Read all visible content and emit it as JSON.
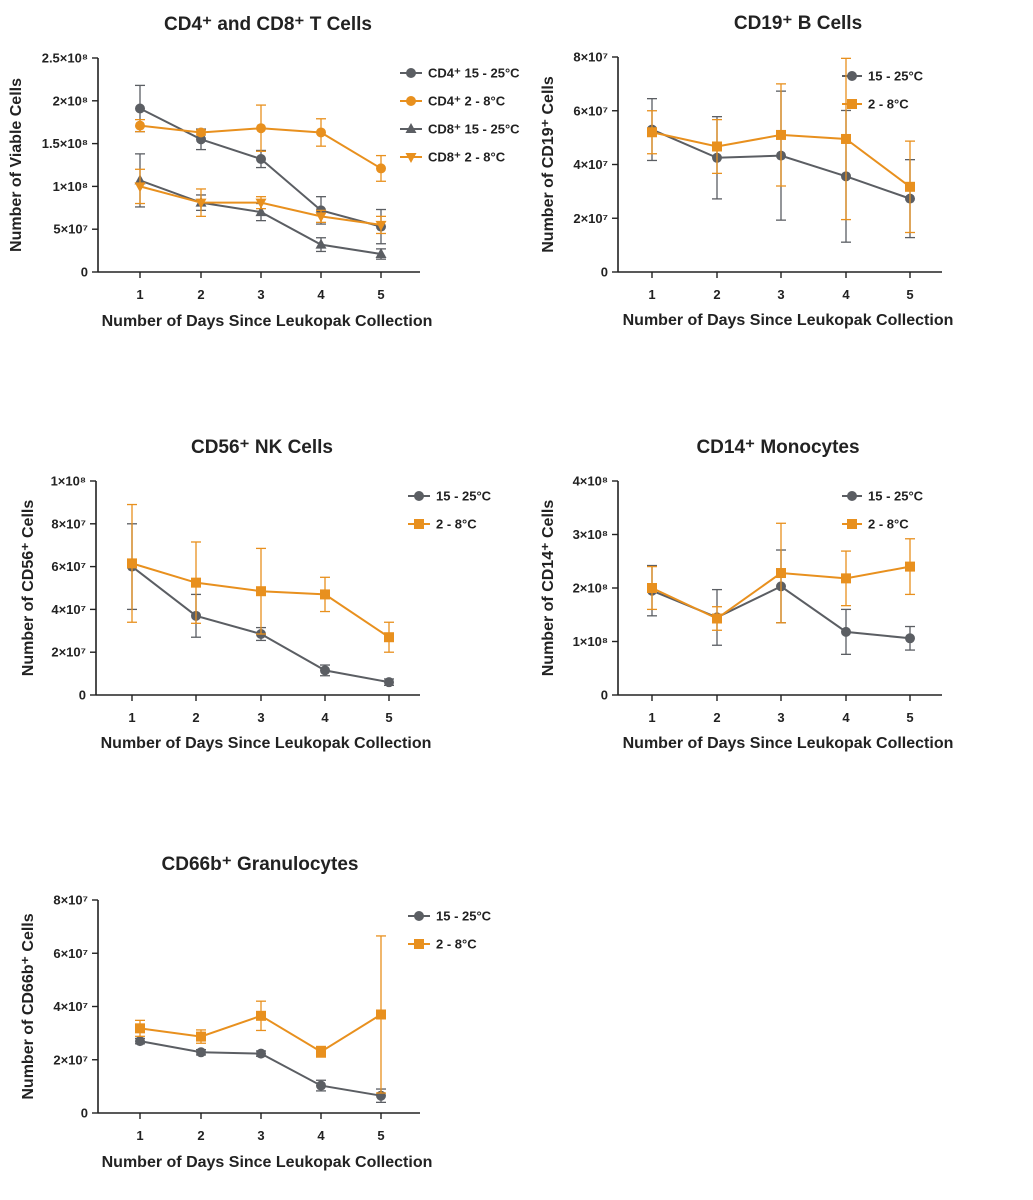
{
  "colors": {
    "warm": "#5b5e63",
    "cold": "#e8901e",
    "axis": "#222222"
  },
  "chart_data": [
    {
      "type": "line",
      "title": "CD4⁺ and CD8⁺ T Cells",
      "xlabel": "Number of Days Since Leukopak Collection",
      "ylabel": "Number of Viable Cells",
      "x": [
        1,
        2,
        3,
        4,
        5
      ],
      "ylim": [
        0,
        250000000
      ],
      "yticks": [
        0,
        50000000,
        100000000,
        150000000,
        200000000,
        250000000
      ],
      "yticklabels": [
        "0",
        "5×10⁷",
        "1×10⁸",
        "1.5×10⁸",
        "2×10⁸",
        "2.5×10⁸"
      ],
      "legend_position": "top-right",
      "series": [
        {
          "name": "CD4⁺ 15 - 25°C",
          "color": "#5b5e63",
          "marker": "circle",
          "values": [
            191000000,
            155000000,
            132000000,
            72000000,
            53000000
          ],
          "errors": [
            27000000,
            12000000,
            10000000,
            16000000,
            20000000
          ]
        },
        {
          "name": "CD4⁺ 2 - 8°C",
          "color": "#e8901e",
          "marker": "circle",
          "values": [
            171000000,
            163000000,
            168000000,
            163000000,
            121000000
          ],
          "errors": [
            7000000,
            3000000,
            27000000,
            16000000,
            15000000
          ]
        },
        {
          "name": "CD8⁺ 15 - 25°C",
          "color": "#5b5e63",
          "marker": "triangle-up",
          "values": [
            107000000,
            81000000,
            70000000,
            32000000,
            21000000
          ],
          "errors": [
            31000000,
            9000000,
            10000000,
            8000000,
            6000000
          ]
        },
        {
          "name": "CD8⁺ 2 - 8°C",
          "color": "#e8901e",
          "marker": "triangle-down",
          "values": [
            100000000,
            81000000,
            81000000,
            65000000,
            55000000
          ],
          "errors": [
            20000000,
            16000000,
            7000000,
            7000000,
            10000000
          ]
        }
      ]
    },
    {
      "type": "line",
      "title": "CD19⁺ B Cells",
      "xlabel": "Number of Days Since Leukopak Collection",
      "ylabel": "Number of CD19⁺ Cells",
      "x": [
        1,
        2,
        3,
        4,
        5
      ],
      "ylim": [
        0,
        80000000
      ],
      "yticks": [
        0,
        20000000,
        40000000,
        60000000,
        80000000
      ],
      "yticklabels": [
        "0",
        "2×10⁷",
        "4×10⁷",
        "6×10⁷",
        "8×10⁷"
      ],
      "legend_position": "top-right",
      "series": [
        {
          "name": "15 - 25°C",
          "color": "#5b5e63",
          "marker": "circle",
          "values": [
            53000000,
            42500000,
            43300000,
            35600000,
            27300000
          ],
          "errors": [
            11500000,
            15300000,
            24000000,
            24500000,
            14500000
          ]
        },
        {
          "name": "2 - 8°C",
          "color": "#e8901e",
          "marker": "square",
          "values": [
            52000000,
            46700000,
            51000000,
            49500000,
            31700000
          ],
          "errors": [
            8000000,
            10000000,
            19000000,
            30000000,
            17000000
          ]
        }
      ]
    },
    {
      "type": "line",
      "title": "CD56⁺ NK Cells",
      "xlabel": "Number of Days Since Leukopak Collection",
      "ylabel": "Number of CD56⁺ Cells",
      "x": [
        1,
        2,
        3,
        4,
        5
      ],
      "ylim": [
        0,
        100000000
      ],
      "yticks": [
        0,
        20000000,
        40000000,
        60000000,
        80000000,
        100000000
      ],
      "yticklabels": [
        "0",
        "2×10⁷",
        "4×10⁷",
        "6×10⁷",
        "8×10⁷",
        "1×10⁸"
      ],
      "legend_position": "top-right",
      "series": [
        {
          "name": "15 - 25°C",
          "color": "#5b5e63",
          "marker": "circle",
          "values": [
            60000000,
            37000000,
            28500000,
            11500000,
            6000000
          ],
          "errors": [
            20000000,
            10000000,
            3000000,
            2500000,
            1500000
          ]
        },
        {
          "name": "2 - 8°C",
          "color": "#e8901e",
          "marker": "square",
          "values": [
            61500000,
            52500000,
            48500000,
            47000000,
            27000000
          ],
          "errors": [
            27500000,
            19000000,
            20000000,
            8000000,
            7000000
          ]
        }
      ]
    },
    {
      "type": "line",
      "title": "CD14⁺ Monocytes",
      "xlabel": "Number of Days Since Leukopak Collection",
      "ylabel": "Number of CD14⁺ Cells",
      "x": [
        1,
        2,
        3,
        4,
        5
      ],
      "ylim": [
        0,
        400000000
      ],
      "yticks": [
        0,
        100000000,
        200000000,
        300000000,
        400000000
      ],
      "yticklabels": [
        "0",
        "1×10⁸",
        "2×10⁸",
        "3×10⁸",
        "4×10⁸"
      ],
      "legend_position": "top-right",
      "series": [
        {
          "name": "15 - 25°C",
          "color": "#5b5e63",
          "marker": "circle",
          "values": [
            195000000,
            145000000,
            203000000,
            118000000,
            106000000
          ],
          "errors": [
            47000000,
            52000000,
            68000000,
            42000000,
            22000000
          ]
        },
        {
          "name": "2 - 8°C",
          "color": "#e8901e",
          "marker": "square",
          "values": [
            200000000,
            143000000,
            228000000,
            218000000,
            240000000
          ],
          "errors": [
            40000000,
            22000000,
            93000000,
            51000000,
            52000000
          ]
        }
      ]
    },
    {
      "type": "line",
      "title": "CD66b⁺ Granulocytes",
      "xlabel": "Number of Days Since Leukopak Collection",
      "ylabel": "Number of CD66b⁺ Cells",
      "x": [
        1,
        2,
        3,
        4,
        5
      ],
      "ylim": [
        0,
        80000000
      ],
      "yticks": [
        0,
        20000000,
        40000000,
        60000000,
        80000000
      ],
      "yticklabels": [
        "0",
        "2×10⁷",
        "4×10⁷",
        "6×10⁷",
        "8×10⁷"
      ],
      "legend_position": "top-right",
      "series": [
        {
          "name": "15 - 25°C",
          "color": "#5b5e63",
          "marker": "circle",
          "values": [
            27000000,
            22800000,
            22300000,
            10300000,
            6500000
          ],
          "errors": [
            1000000,
            1000000,
            1000000,
            2000000,
            2500000
          ]
        },
        {
          "name": "2 - 8°C",
          "color": "#e8901e",
          "marker": "square",
          "values": [
            31800000,
            28700000,
            36500000,
            23000000,
            37000000
          ],
          "errors": [
            3000000,
            2500000,
            5500000,
            2000000,
            29500000
          ]
        }
      ]
    }
  ]
}
